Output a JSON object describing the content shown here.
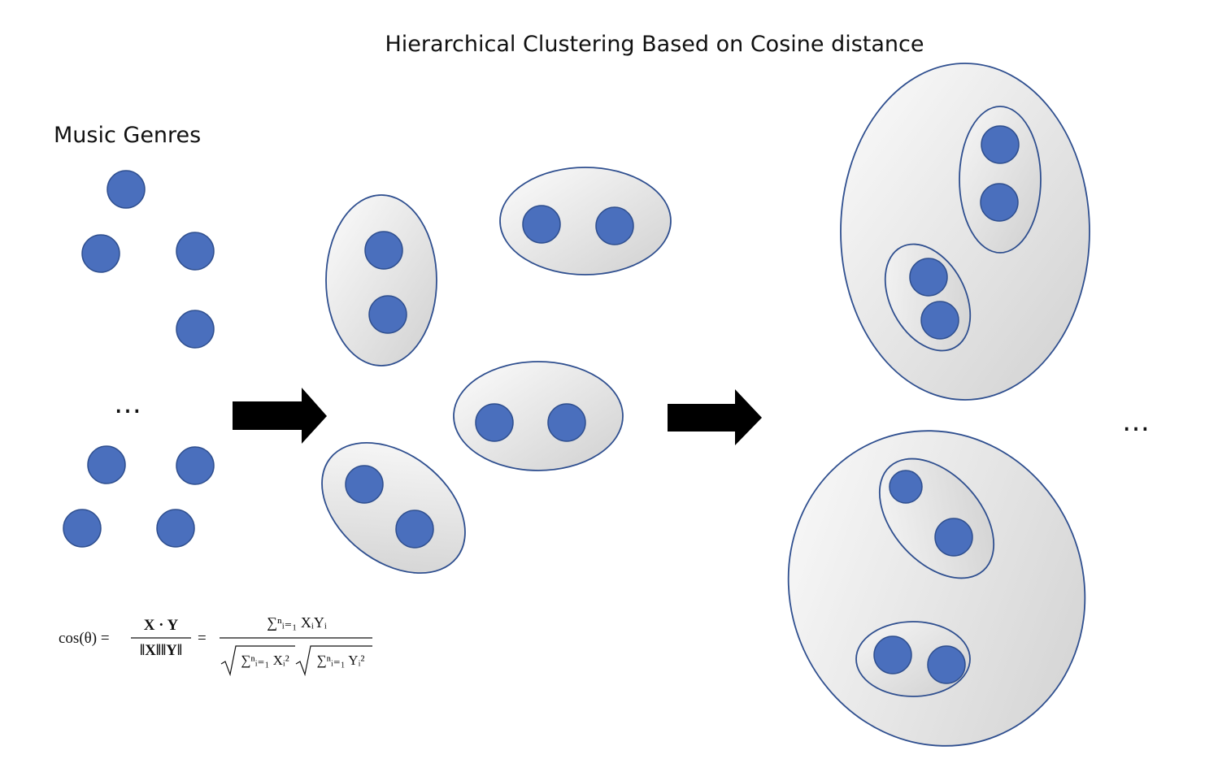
{
  "title": "Hierarchical Clustering Based on Cosine distance",
  "music_genres_label": "Music Genres",
  "ellipsis": "…",
  "colors": {
    "dot_fill": "#4a6fbd",
    "dot_stroke": "#2f4f8f",
    "cluster_stroke": "#2f4f8f",
    "cluster_fill_light": "#fafafa",
    "cluster_fill_dark": "#d2d2d2",
    "arrow": "#000000"
  },
  "formula": {
    "lhs": "cos(θ) =",
    "frac1_num": "X · Y",
    "frac1_den": "‖X‖‖Y‖",
    "eq": "=",
    "frac2_num": "∑ⁿᵢ₌₁ XᵢYᵢ",
    "frac2_den_a": "∑ⁿᵢ₌₁ Xᵢ²",
    "frac2_den_b": "∑ⁿᵢ₌₁ Yᵢ²"
  },
  "icons": [
    "right-arrow-icon",
    "right-arrow-icon"
  ]
}
